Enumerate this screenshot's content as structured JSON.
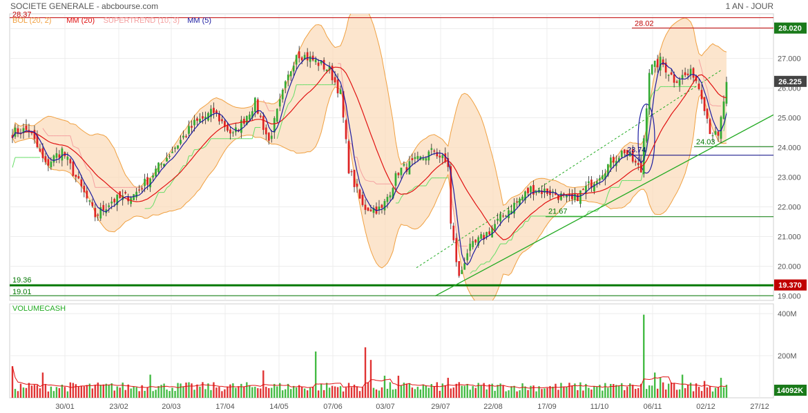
{
  "header": {
    "title": "SOCIETE GENERALE - abcbourse.com",
    "period": "1 AN - JOUR"
  },
  "chart_data": [
    {
      "type": "candlestick",
      "legend": [
        {
          "label": "BOL (20, 2)",
          "color": "#f0a040"
        },
        {
          "label": "MM (20)",
          "color": "#e01010"
        },
        {
          "label": "SUPERTREND (10, 3)",
          "color": "#f4a0a0"
        },
        {
          "label": "MM (5)",
          "color": "#1a1aa0"
        }
      ],
      "ylim": [
        18.85,
        28.5
      ],
      "y_ticks": [
        "19.000",
        "20.000",
        "21.000",
        "22.000",
        "23.000",
        "24.000",
        "25.000",
        "26.000",
        "27.000",
        "28.000"
      ],
      "x_ticks": [
        "30/01",
        "23/02",
        "20/03",
        "17/04",
        "14/05",
        "07/06",
        "03/07",
        "29/07",
        "22/08",
        "17/09",
        "11/10",
        "06/11",
        "02/12",
        "27/12"
      ],
      "anchors": [
        {
          "i": 0,
          "v": 24.5
        },
        {
          "i": 6,
          "v": 24.6
        },
        {
          "i": 12,
          "v": 23.4
        },
        {
          "i": 18,
          "v": 23.9
        },
        {
          "i": 23,
          "v": 23.0
        },
        {
          "i": 30,
          "v": 21.7
        },
        {
          "i": 36,
          "v": 22.2
        },
        {
          "i": 44,
          "v": 22.4
        },
        {
          "i": 50,
          "v": 23.0
        },
        {
          "i": 58,
          "v": 23.9
        },
        {
          "i": 66,
          "v": 24.8
        },
        {
          "i": 73,
          "v": 25.2
        },
        {
          "i": 80,
          "v": 24.4
        },
        {
          "i": 88,
          "v": 25.5
        },
        {
          "i": 93,
          "v": 24.2
        },
        {
          "i": 98,
          "v": 25.8
        },
        {
          "i": 103,
          "v": 27.2
        },
        {
          "i": 110,
          "v": 26.9
        },
        {
          "i": 115,
          "v": 26.6
        },
        {
          "i": 119,
          "v": 25.8
        },
        {
          "i": 122,
          "v": 23.3
        },
        {
          "i": 127,
          "v": 22.0
        },
        {
          "i": 134,
          "v": 21.9
        },
        {
          "i": 140,
          "v": 23.2
        },
        {
          "i": 148,
          "v": 23.6
        },
        {
          "i": 153,
          "v": 23.9
        },
        {
          "i": 158,
          "v": 23.4
        },
        {
          "i": 159,
          "v": 21.4
        },
        {
          "i": 162,
          "v": 19.6
        },
        {
          "i": 165,
          "v": 20.5
        },
        {
          "i": 172,
          "v": 21.1
        },
        {
          "i": 180,
          "v": 21.9
        },
        {
          "i": 188,
          "v": 22.6
        },
        {
          "i": 195,
          "v": 22.5
        },
        {
          "i": 203,
          "v": 22.2
        },
        {
          "i": 210,
          "v": 22.8
        },
        {
          "i": 218,
          "v": 23.6
        },
        {
          "i": 222,
          "v": 23.9
        },
        {
          "i": 228,
          "v": 23.2
        },
        {
          "i": 231,
          "v": 26.6
        },
        {
          "i": 235,
          "v": 26.9
        },
        {
          "i": 240,
          "v": 26.3
        },
        {
          "i": 247,
          "v": 26.5
        },
        {
          "i": 250,
          "v": 25.8
        },
        {
          "i": 253,
          "v": 24.6
        },
        {
          "i": 256,
          "v": 24.3
        },
        {
          "i": 259,
          "v": 26.2
        }
      ],
      "n_candles": 260,
      "horizontal_levels": [
        {
          "value": 28.37,
          "label": "28.37",
          "color": "#c00000"
        },
        {
          "value": 28.02,
          "label": "28.02",
          "color": "#c00000"
        },
        {
          "value": 24.03,
          "label": "24.03",
          "color": "#007700"
        },
        {
          "value": 23.74,
          "label": "23.74",
          "color": "#000080"
        },
        {
          "value": 21.67,
          "label": "21.67",
          "color": "#007700"
        },
        {
          "value": 19.36,
          "label": "19.36",
          "color": "#007700"
        },
        {
          "value": 19.01,
          "label": "19.01",
          "color": "#007700"
        }
      ],
      "price_badges": [
        {
          "label": "28.020",
          "value": 28.02,
          "color": "#1a7a1a"
        },
        {
          "label": "26.225",
          "value": 26.225,
          "color": "#444444"
        },
        {
          "label": "19.370",
          "value": 19.37,
          "color": "#c00000"
        }
      ]
    },
    {
      "type": "bar",
      "title": "VOLUMECASH",
      "y_ticks": [
        "400M",
        "200M"
      ],
      "last_value_badge": "14092K"
    }
  ]
}
